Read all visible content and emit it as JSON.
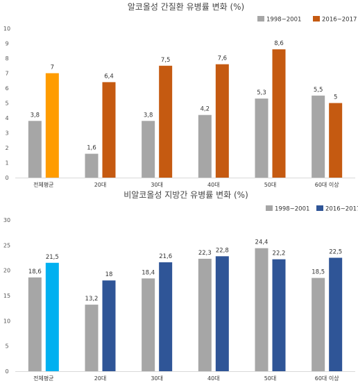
{
  "chart_data": [
    {
      "type": "bar",
      "title": "알코올성 간질환 유병률 변화 (%)",
      "categories": [
        "전체평균",
        "20대",
        "30대",
        "40대",
        "50대",
        "60대 이상"
      ],
      "series": [
        {
          "name": "1998~2001",
          "values": [
            3.8,
            1.6,
            3.8,
            4.2,
            5.3,
            5.5
          ],
          "labels": [
            "3,8",
            "1,6",
            "3,8",
            "4,2",
            "5,3",
            "5,5"
          ],
          "color": "#a6a6a6"
        },
        {
          "name": "2016~2017",
          "values": [
            7,
            6.4,
            7.5,
            7.6,
            8.6,
            5
          ],
          "labels": [
            "7",
            "6,4",
            "7,5",
            "7,6",
            "8,6",
            "5"
          ],
          "color": "#c55a11",
          "highlight_first_color": "#ff9c00"
        }
      ],
      "ylim": [
        0,
        10
      ],
      "yticks": [
        0,
        1,
        2,
        3,
        4,
        5,
        6,
        7,
        8,
        9,
        10
      ],
      "grid": false,
      "legend_position": "top-right",
      "xlabel": "",
      "ylabel": ""
    },
    {
      "type": "bar",
      "title": "비알코올성 지방간 유병률 변화 (%)",
      "categories": [
        "전체평균",
        "20대",
        "30대",
        "40대",
        "50대",
        "60대 이상"
      ],
      "series": [
        {
          "name": "1998~2001",
          "values": [
            18.6,
            13.2,
            18.4,
            22.3,
            24.4,
            18.5
          ],
          "labels": [
            "18,6",
            "13,2",
            "18,4",
            "22,3",
            "24,4",
            "18,5"
          ],
          "color": "#a6a6a6"
        },
        {
          "name": "2016~2017",
          "values": [
            21.5,
            18,
            21.6,
            22.8,
            22.2,
            22.5
          ],
          "labels": [
            "21,5",
            "18",
            "21,6",
            "22,8",
            "22,2",
            "22,5"
          ],
          "color": "#2f5597",
          "highlight_first_color": "#00b0f0"
        }
      ],
      "ylim": [
        0,
        30
      ],
      "yticks": [
        0,
        5,
        10,
        15,
        20,
        25,
        30
      ],
      "grid": false,
      "legend_position": "top-right",
      "xlabel": "",
      "ylabel": ""
    }
  ]
}
